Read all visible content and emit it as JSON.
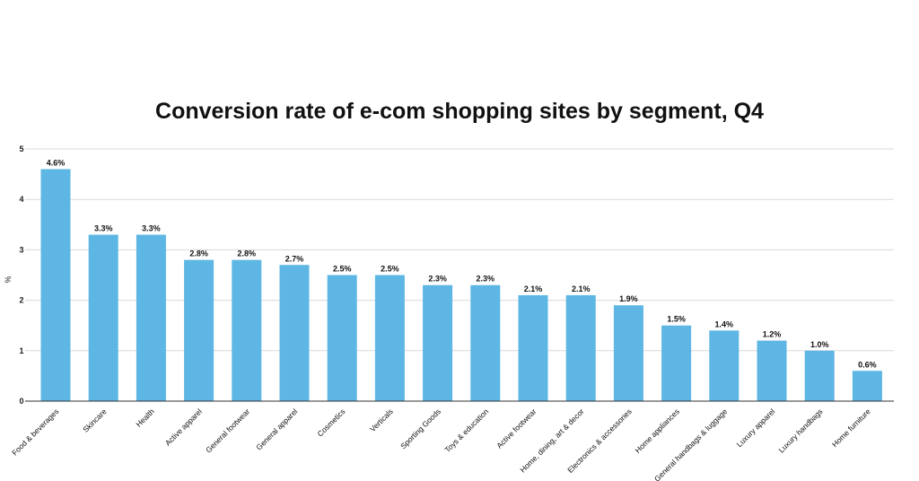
{
  "chart_data": {
    "type": "bar",
    "title": "Conversion rate of e-com shopping sites by segment, Q4",
    "ylabel": "%",
    "xlabel": "",
    "ylim": [
      0,
      5
    ],
    "yticks": [
      0,
      1,
      2,
      3,
      4,
      5
    ],
    "grid": true,
    "bar_color": "#5DB6E3",
    "categories": [
      "Food & beverages",
      "Skincare",
      "Health",
      "Active apparel",
      "General footwear",
      "General apparel",
      "Cosmetics",
      "Verticals",
      "Sporting Goods",
      "Toys & education",
      "Active footwear",
      "Home, dining, art & decor",
      "Electronics & accessories",
      "Home appliances",
      "General handbags & luggage",
      "Luxury apparel",
      "Luxury handbags",
      "Home furniture"
    ],
    "values": [
      4.6,
      3.3,
      3.3,
      2.8,
      2.8,
      2.7,
      2.5,
      2.5,
      2.3,
      2.3,
      2.1,
      2.1,
      1.9,
      1.5,
      1.4,
      1.2,
      1.0,
      0.6
    ],
    "data_labels": [
      "4.6%",
      "3.3%",
      "3.3%",
      "2.8%",
      "2.8%",
      "2.7%",
      "2.5%",
      "2.5%",
      "2.3%",
      "2.3%",
      "2.1%",
      "2.1%",
      "1.9%",
      "1.5%",
      "1.4%",
      "1.2%",
      "1.0%",
      "0.6%"
    ]
  }
}
